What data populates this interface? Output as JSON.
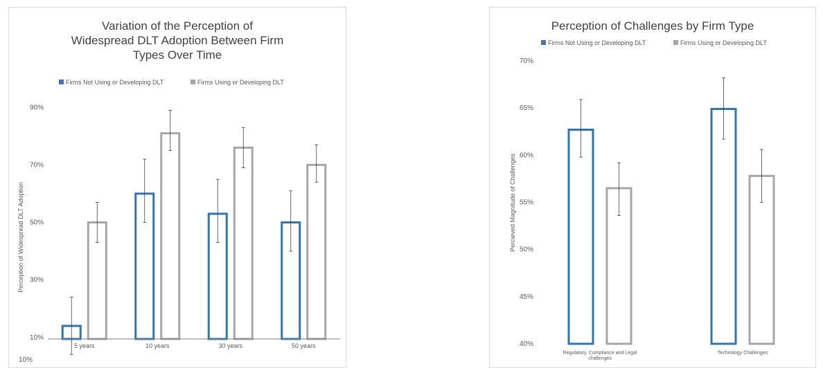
{
  "chart_data": [
    {
      "type": "bar",
      "title_lines": [
        "Variation of the Perception of",
        "Widespread DLT Adoption Between Firm",
        "Types Over Time"
      ],
      "xlabel": "",
      "ylabel": "Perception of Widespread DLT Adoption",
      "categories": [
        "5 years",
        "10 years",
        "30 years",
        "50 years"
      ],
      "yticks": [
        "10%",
        "30%",
        "50%",
        "70%",
        "90%"
      ],
      "bottom_tick": "10%",
      "ylim": [
        0.02,
        0.98
      ],
      "legend_position": "top",
      "series": [
        {
          "name": "Firms Not Using or Developing DLT",
          "color": "#2e75b6",
          "values": [
            0.14,
            0.6,
            0.53,
            0.5
          ],
          "err_high": [
            0.24,
            0.72,
            0.65,
            0.61
          ],
          "err_low": [
            0.04,
            0.5,
            0.43,
            0.4
          ]
        },
        {
          "name": "Firms Using or Developing DLT",
          "color": "#a6a6a6",
          "values": [
            0.5,
            0.81,
            0.76,
            0.7
          ],
          "err_high": [
            0.57,
            0.89,
            0.83,
            0.77
          ],
          "err_low": [
            0.43,
            0.75,
            0.69,
            0.64
          ]
        }
      ]
    },
    {
      "type": "bar",
      "title_lines": [
        "Perception of Challenges by Firm Type"
      ],
      "xlabel": "",
      "ylabel": "Percieved Magnitude of Challenges",
      "categories": [
        "Regulatory, Compliance and Legal challenges",
        "Technology Challenges"
      ],
      "yticks": [
        "40%",
        "45%",
        "50%",
        "55%",
        "60%",
        "65%",
        "70%"
      ],
      "ylim": [
        0.4,
        0.7
      ],
      "legend_position": "top",
      "series": [
        {
          "name": "Firms Not Using or Developing DLT",
          "color": "#2e75b6",
          "values": [
            0.627,
            0.649
          ],
          "err_high": [
            0.659,
            0.682
          ],
          "err_low": [
            0.598,
            0.617
          ]
        },
        {
          "name": "Firms Using or Developing DLT",
          "color": "#a6a6a6",
          "values": [
            0.565,
            0.578
          ],
          "err_high": [
            0.592,
            0.606
          ],
          "err_low": [
            0.536,
            0.55
          ]
        }
      ]
    }
  ]
}
